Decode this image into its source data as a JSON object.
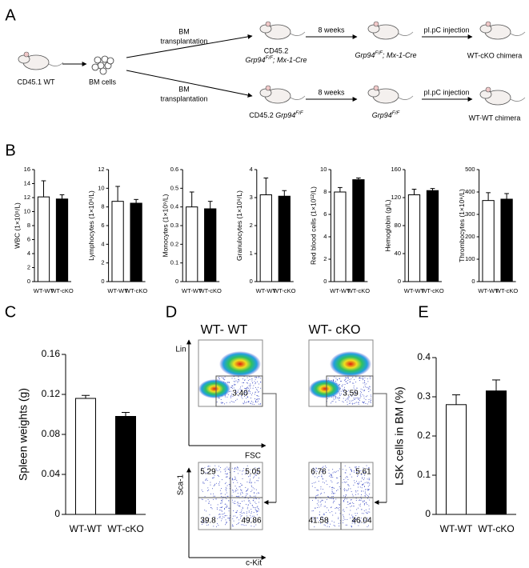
{
  "panel_labels": [
    "A",
    "B",
    "C",
    "D",
    "E"
  ],
  "panel_a": {
    "donor": "CD45.1 WT",
    "bm_cells": "BM cells",
    "upper": {
      "transplant": [
        "BM",
        "transplantation"
      ],
      "recipient_prefix": "CD45.2",
      "recipient_genotype": {
        "gene": "Grp94",
        "sup": "F/F",
        "suffix": "; Mx-1-Cre"
      },
      "weeks": "8 weeks",
      "after_genotype": {
        "gene": "Grp94",
        "sup": "F/F",
        "suffix": "; Mx-1-Cre"
      },
      "injection": "pI.pC injection",
      "chimera": "WT-cKO chimera"
    },
    "lower": {
      "transplant": [
        "BM",
        "transplantation"
      ],
      "recipient_prefix": "CD45.2 ",
      "recipient_genotype": {
        "gene": "Grp94",
        "sup": "F/F"
      },
      "weeks": "8 weeks",
      "after_genotype": {
        "gene": "Grp94",
        "sup": "F/F"
      },
      "injection": "pI.pC injection",
      "chimera": "WT-WT chimera"
    }
  },
  "chart_data": [
    {
      "type": "bar",
      "ylabel": "WBC (1×10⁹/L)",
      "categories": [
        "WT-WT",
        "WT-cKO"
      ],
      "values": [
        12.1,
        11.8
      ],
      "errors": [
        2.3,
        0.6
      ],
      "colors": [
        "#ffffff",
        "#000000"
      ],
      "ylim": [
        0,
        16
      ],
      "yticks": [
        0,
        2,
        4,
        6,
        8,
        10,
        12,
        14,
        16
      ]
    },
    {
      "type": "bar",
      "ylabel": "Lymphocytes (1×10⁹/L)",
      "categories": [
        "WT-WT",
        "WT-cKO"
      ],
      "values": [
        8.6,
        8.4
      ],
      "errors": [
        1.6,
        0.4
      ],
      "colors": [
        "#ffffff",
        "#000000"
      ],
      "ylim": [
        0,
        12
      ],
      "yticks": [
        0,
        2,
        4,
        6,
        8,
        10,
        12
      ]
    },
    {
      "type": "bar",
      "ylabel": "Monocytes (1×10⁹/L)",
      "categories": [
        "WT-WT",
        "WT-cKO"
      ],
      "values": [
        0.4,
        0.39
      ],
      "errors": [
        0.08,
        0.04
      ],
      "colors": [
        "#ffffff",
        "#000000"
      ],
      "ylim": [
        0,
        0.6
      ],
      "yticks": [
        0,
        0.1,
        0.2,
        0.3,
        0.4,
        0.5,
        0.6
      ]
    },
    {
      "type": "bar",
      "ylabel": "Granulocytes (1×10⁹/L)",
      "categories": [
        "WT-WT",
        "WT-cKO"
      ],
      "values": [
        3.1,
        3.05
      ],
      "errors": [
        0.6,
        0.2
      ],
      "colors": [
        "#ffffff",
        "#000000"
      ],
      "ylim": [
        0,
        4
      ],
      "yticks": [
        0,
        1,
        2,
        3,
        4
      ]
    },
    {
      "type": "bar",
      "ylabel": "Red blood cells (1×10¹²/L)",
      "categories": [
        "WT-WT",
        "WT-cKO"
      ],
      "values": [
        8.0,
        9.1
      ],
      "errors": [
        0.4,
        0.15
      ],
      "colors": [
        "#ffffff",
        "#000000"
      ],
      "ylim": [
        0,
        10
      ],
      "yticks": [
        0,
        2,
        4,
        6,
        8,
        10
      ]
    },
    {
      "type": "bar",
      "ylabel": "Hemoglobin (g/L)",
      "categories": [
        "WT-WT",
        "WT-cKO"
      ],
      "values": [
        124,
        130
      ],
      "errors": [
        8,
        3
      ],
      "colors": [
        "#ffffff",
        "#000000"
      ],
      "ylim": [
        0,
        160
      ],
      "yticks": [
        0,
        40,
        80,
        120,
        160
      ]
    },
    {
      "type": "bar",
      "ylabel": "Thrombocytes (1×10⁹/L)",
      "categories": [
        "WT-WT",
        "WT-cKO"
      ],
      "values": [
        362,
        368
      ],
      "errors": [
        35,
        25
      ],
      "colors": [
        "#ffffff",
        "#000000"
      ],
      "ylim": [
        0,
        500
      ],
      "yticks": [
        0,
        100,
        200,
        300,
        400,
        500
      ]
    },
    {
      "type": "bar",
      "ylabel": "Spleen weights (g)",
      "categories": [
        "WT-WT",
        "WT-cKO"
      ],
      "values": [
        0.116,
        0.098
      ],
      "errors": [
        0.003,
        0.004
      ],
      "colors": [
        "#ffffff",
        "#000000"
      ],
      "ylim": [
        0,
        0.16
      ],
      "yticks": [
        0,
        0.04,
        0.08,
        0.12,
        0.16
      ]
    },
    {
      "type": "bar",
      "ylabel": "LSK cells in BM (%)",
      "categories": [
        "WT-WT",
        "WT-cKO"
      ],
      "values": [
        0.28,
        0.315
      ],
      "errors": [
        0.025,
        0.028
      ],
      "colors": [
        "#ffffff",
        "#000000"
      ],
      "ylim": [
        0,
        0.4
      ],
      "yticks": [
        0,
        0.1,
        0.2,
        0.3,
        0.4
      ]
    }
  ],
  "panel_d": {
    "columns": [
      "WT- WT",
      "WT- cKO"
    ],
    "top_axes": {
      "y": "Lin",
      "x": "FSC"
    },
    "bottom_axes": {
      "y": "Sca-1",
      "x": "c-Kit"
    },
    "gates": [
      "3.40",
      "3.59"
    ],
    "quadrants": [
      [
        "5.29",
        "5.05",
        "39.8",
        "49.86"
      ],
      [
        "6.76",
        "5.61",
        "41.58",
        "46.04"
      ]
    ]
  }
}
